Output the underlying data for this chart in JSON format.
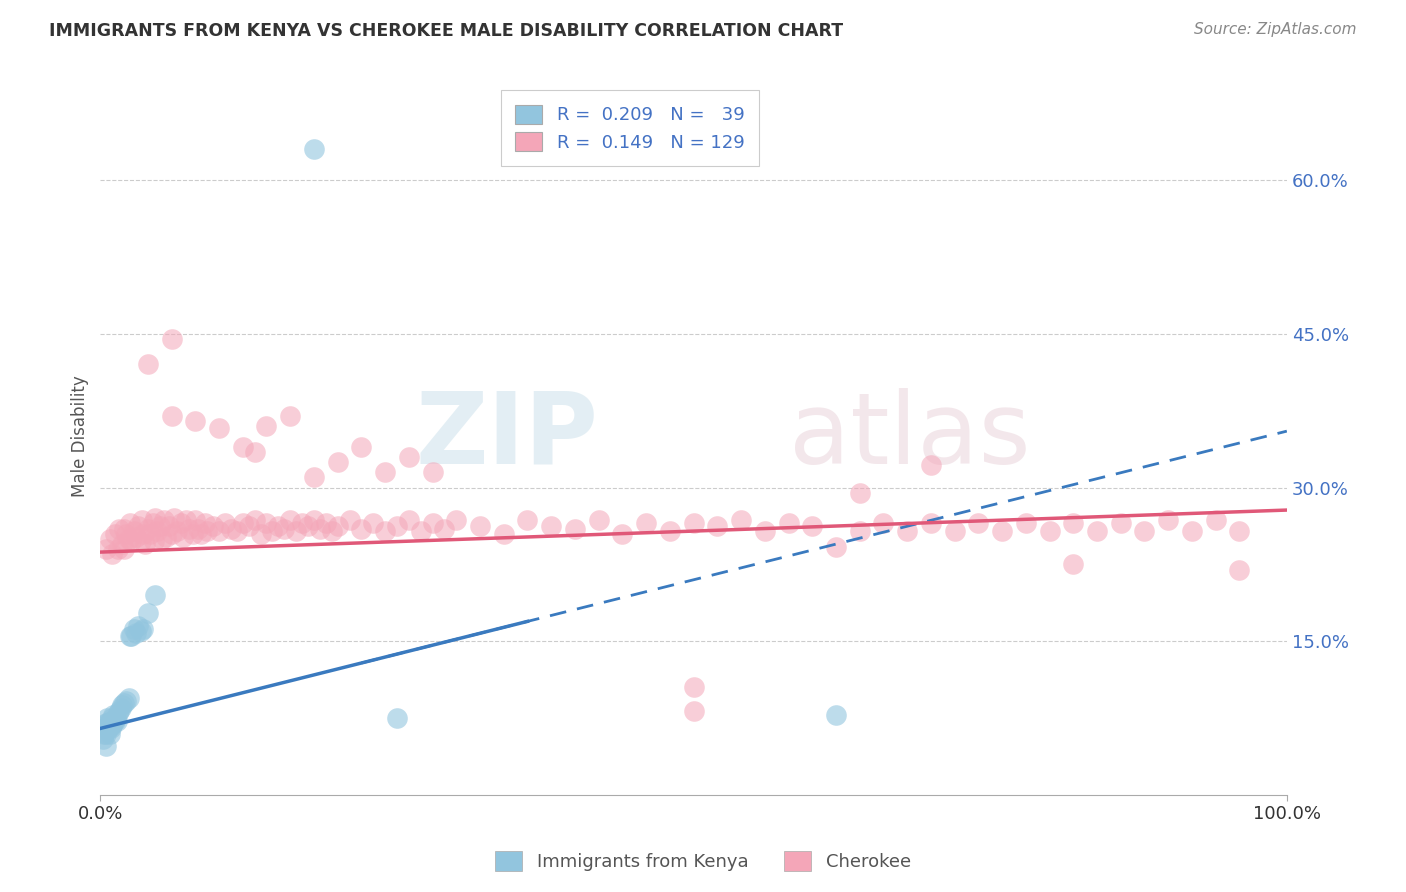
{
  "title": "IMMIGRANTS FROM KENYA VS CHEROKEE MALE DISABILITY CORRELATION CHART",
  "source": "Source: ZipAtlas.com",
  "ylabel": "Male Disability",
  "xlim": [
    0.0,
    1.0
  ],
  "ylim": [
    0.0,
    0.7
  ],
  "ytick_labels_right": [
    "15.0%",
    "30.0%",
    "45.0%",
    "60.0%"
  ],
  "ytick_vals_right": [
    0.15,
    0.3,
    0.45,
    0.6
  ],
  "legend_label1": "Immigrants from Kenya",
  "legend_label2": "Cherokee",
  "blue_color": "#92c5de",
  "pink_color": "#f4a6b8",
  "blue_line_color": "#3a7abf",
  "pink_line_color": "#e05878",
  "blue_scatter": [
    [
      0.002,
      0.055
    ],
    [
      0.003,
      0.06
    ],
    [
      0.004,
      0.065
    ],
    [
      0.005,
      0.06
    ],
    [
      0.005,
      0.07
    ],
    [
      0.006,
      0.07
    ],
    [
      0.006,
      0.075
    ],
    [
      0.007,
      0.065
    ],
    [
      0.007,
      0.07
    ],
    [
      0.008,
      0.06
    ],
    [
      0.008,
      0.068
    ],
    [
      0.009,
      0.065
    ],
    [
      0.009,
      0.072
    ],
    [
      0.01,
      0.068
    ],
    [
      0.01,
      0.075
    ],
    [
      0.011,
      0.07
    ],
    [
      0.011,
      0.078
    ],
    [
      0.012,
      0.072
    ],
    [
      0.013,
      0.075
    ],
    [
      0.014,
      0.072
    ],
    [
      0.015,
      0.08
    ],
    [
      0.016,
      0.082
    ],
    [
      0.017,
      0.085
    ],
    [
      0.018,
      0.088
    ],
    [
      0.02,
      0.09
    ],
    [
      0.022,
      0.092
    ],
    [
      0.024,
      0.095
    ],
    [
      0.025,
      0.155
    ],
    [
      0.026,
      0.155
    ],
    [
      0.028,
      0.162
    ],
    [
      0.03,
      0.158
    ],
    [
      0.032,
      0.165
    ],
    [
      0.034,
      0.16
    ],
    [
      0.036,
      0.162
    ],
    [
      0.04,
      0.178
    ],
    [
      0.25,
      0.075
    ],
    [
      0.046,
      0.195
    ],
    [
      0.62,
      0.078
    ],
    [
      0.18,
      0.63
    ],
    [
      0.005,
      0.048
    ]
  ],
  "pink_scatter": [
    [
      0.005,
      0.24
    ],
    [
      0.008,
      0.25
    ],
    [
      0.01,
      0.235
    ],
    [
      0.012,
      0.255
    ],
    [
      0.015,
      0.24
    ],
    [
      0.016,
      0.26
    ],
    [
      0.018,
      0.245
    ],
    [
      0.02,
      0.26
    ],
    [
      0.02,
      0.24
    ],
    [
      0.022,
      0.255
    ],
    [
      0.024,
      0.25
    ],
    [
      0.025,
      0.265
    ],
    [
      0.026,
      0.248
    ],
    [
      0.028,
      0.258
    ],
    [
      0.03,
      0.252
    ],
    [
      0.032,
      0.262
    ],
    [
      0.034,
      0.248
    ],
    [
      0.035,
      0.268
    ],
    [
      0.036,
      0.255
    ],
    [
      0.038,
      0.245
    ],
    [
      0.04,
      0.26
    ],
    [
      0.042,
      0.255
    ],
    [
      0.044,
      0.265
    ],
    [
      0.045,
      0.248
    ],
    [
      0.046,
      0.27
    ],
    [
      0.048,
      0.258
    ],
    [
      0.05,
      0.262
    ],
    [
      0.052,
      0.25
    ],
    [
      0.054,
      0.268
    ],
    [
      0.055,
      0.252
    ],
    [
      0.058,
      0.262
    ],
    [
      0.06,
      0.255
    ],
    [
      0.062,
      0.27
    ],
    [
      0.065,
      0.258
    ],
    [
      0.068,
      0.265
    ],
    [
      0.07,
      0.252
    ],
    [
      0.072,
      0.268
    ],
    [
      0.075,
      0.26
    ],
    [
      0.078,
      0.255
    ],
    [
      0.08,
      0.268
    ],
    [
      0.082,
      0.26
    ],
    [
      0.085,
      0.255
    ],
    [
      0.088,
      0.265
    ],
    [
      0.09,
      0.258
    ],
    [
      0.095,
      0.262
    ],
    [
      0.1,
      0.258
    ],
    [
      0.105,
      0.265
    ],
    [
      0.11,
      0.26
    ],
    [
      0.115,
      0.258
    ],
    [
      0.12,
      0.265
    ],
    [
      0.125,
      0.262
    ],
    [
      0.13,
      0.268
    ],
    [
      0.135,
      0.255
    ],
    [
      0.14,
      0.265
    ],
    [
      0.145,
      0.258
    ],
    [
      0.15,
      0.262
    ],
    [
      0.155,
      0.26
    ],
    [
      0.16,
      0.268
    ],
    [
      0.165,
      0.258
    ],
    [
      0.17,
      0.265
    ],
    [
      0.175,
      0.262
    ],
    [
      0.18,
      0.268
    ],
    [
      0.185,
      0.26
    ],
    [
      0.19,
      0.265
    ],
    [
      0.195,
      0.258
    ],
    [
      0.2,
      0.262
    ],
    [
      0.21,
      0.268
    ],
    [
      0.22,
      0.26
    ],
    [
      0.23,
      0.265
    ],
    [
      0.24,
      0.258
    ],
    [
      0.25,
      0.262
    ],
    [
      0.26,
      0.268
    ],
    [
      0.27,
      0.258
    ],
    [
      0.28,
      0.265
    ],
    [
      0.29,
      0.26
    ],
    [
      0.3,
      0.268
    ],
    [
      0.32,
      0.262
    ],
    [
      0.34,
      0.255
    ],
    [
      0.36,
      0.268
    ],
    [
      0.38,
      0.262
    ],
    [
      0.4,
      0.26
    ],
    [
      0.42,
      0.268
    ],
    [
      0.44,
      0.255
    ],
    [
      0.46,
      0.265
    ],
    [
      0.48,
      0.258
    ],
    [
      0.5,
      0.265
    ],
    [
      0.52,
      0.262
    ],
    [
      0.54,
      0.268
    ],
    [
      0.56,
      0.258
    ],
    [
      0.58,
      0.265
    ],
    [
      0.6,
      0.262
    ],
    [
      0.14,
      0.36
    ],
    [
      0.16,
      0.37
    ],
    [
      0.18,
      0.31
    ],
    [
      0.2,
      0.325
    ],
    [
      0.22,
      0.34
    ],
    [
      0.24,
      0.315
    ],
    [
      0.26,
      0.33
    ],
    [
      0.28,
      0.315
    ],
    [
      0.06,
      0.37
    ],
    [
      0.08,
      0.365
    ],
    [
      0.1,
      0.358
    ],
    [
      0.12,
      0.34
    ],
    [
      0.13,
      0.335
    ],
    [
      0.04,
      0.42
    ],
    [
      0.06,
      0.445
    ],
    [
      0.62,
      0.242
    ],
    [
      0.64,
      0.258
    ],
    [
      0.66,
      0.265
    ],
    [
      0.68,
      0.258
    ],
    [
      0.7,
      0.265
    ],
    [
      0.72,
      0.258
    ],
    [
      0.74,
      0.265
    ],
    [
      0.76,
      0.258
    ],
    [
      0.78,
      0.265
    ],
    [
      0.8,
      0.258
    ],
    [
      0.82,
      0.265
    ],
    [
      0.84,
      0.258
    ],
    [
      0.86,
      0.265
    ],
    [
      0.88,
      0.258
    ],
    [
      0.9,
      0.268
    ],
    [
      0.92,
      0.258
    ],
    [
      0.94,
      0.268
    ],
    [
      0.96,
      0.258
    ],
    [
      0.64,
      0.295
    ],
    [
      0.7,
      0.322
    ],
    [
      0.82,
      0.225
    ],
    [
      0.96,
      0.22
    ],
    [
      0.5,
      0.105
    ],
    [
      0.5,
      0.082
    ]
  ],
  "blue_line_x0": 0.0,
  "blue_line_y0": 0.065,
  "blue_line_x1": 1.0,
  "blue_line_y1": 0.355,
  "pink_line_x0": 0.0,
  "pink_line_y0": 0.237,
  "pink_line_x1": 1.0,
  "pink_line_y1": 0.278
}
